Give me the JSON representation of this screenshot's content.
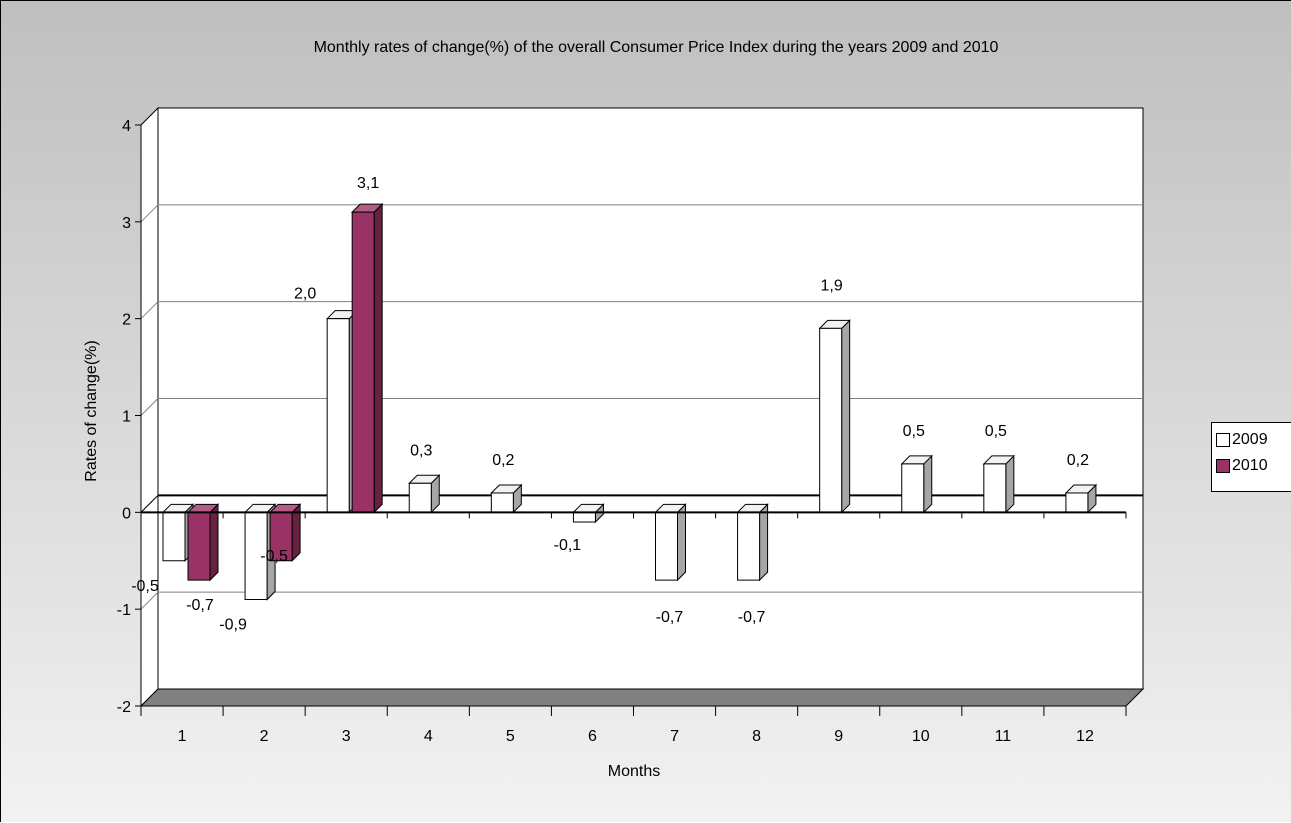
{
  "chart_data": {
    "type": "bar",
    "title": "Monthly rates of change(%) of the overall Consumer Price Index during the years 2009 and 2010",
    "xlabel": "Months",
    "ylabel": "Rates of change(%)",
    "categories": [
      "1",
      "2",
      "3",
      "4",
      "5",
      "6",
      "7",
      "8",
      "9",
      "10",
      "11",
      "12"
    ],
    "ylim": [
      -2,
      4
    ],
    "yticks": [
      "-2",
      "-1",
      "0",
      "1",
      "2",
      "3",
      "4"
    ],
    "grid": true,
    "legend_position": "right",
    "series": [
      {
        "name": "2009",
        "color": "#ffffff",
        "values": [
          -0.5,
          -0.9,
          2.0,
          0.3,
          0.2,
          -0.1,
          -0.7,
          -0.7,
          1.9,
          0.5,
          0.5,
          0.2
        ],
        "labels": [
          "-0,5",
          "-0,9",
          "2,0",
          "0,3",
          "0,2",
          "-0,1",
          "-0,7",
          "-0,7",
          "1,9",
          "0,5",
          "0,5",
          "0,2"
        ]
      },
      {
        "name": "2010",
        "color": "#993366",
        "values": [
          -0.7,
          -0.5,
          3.1,
          null,
          null,
          null,
          null,
          null,
          null,
          null,
          null,
          null
        ],
        "labels": [
          "-0,7",
          "-0,5",
          "3,1",
          "",
          "",
          "",
          "",
          "",
          "",
          "",
          "",
          ""
        ]
      }
    ]
  }
}
